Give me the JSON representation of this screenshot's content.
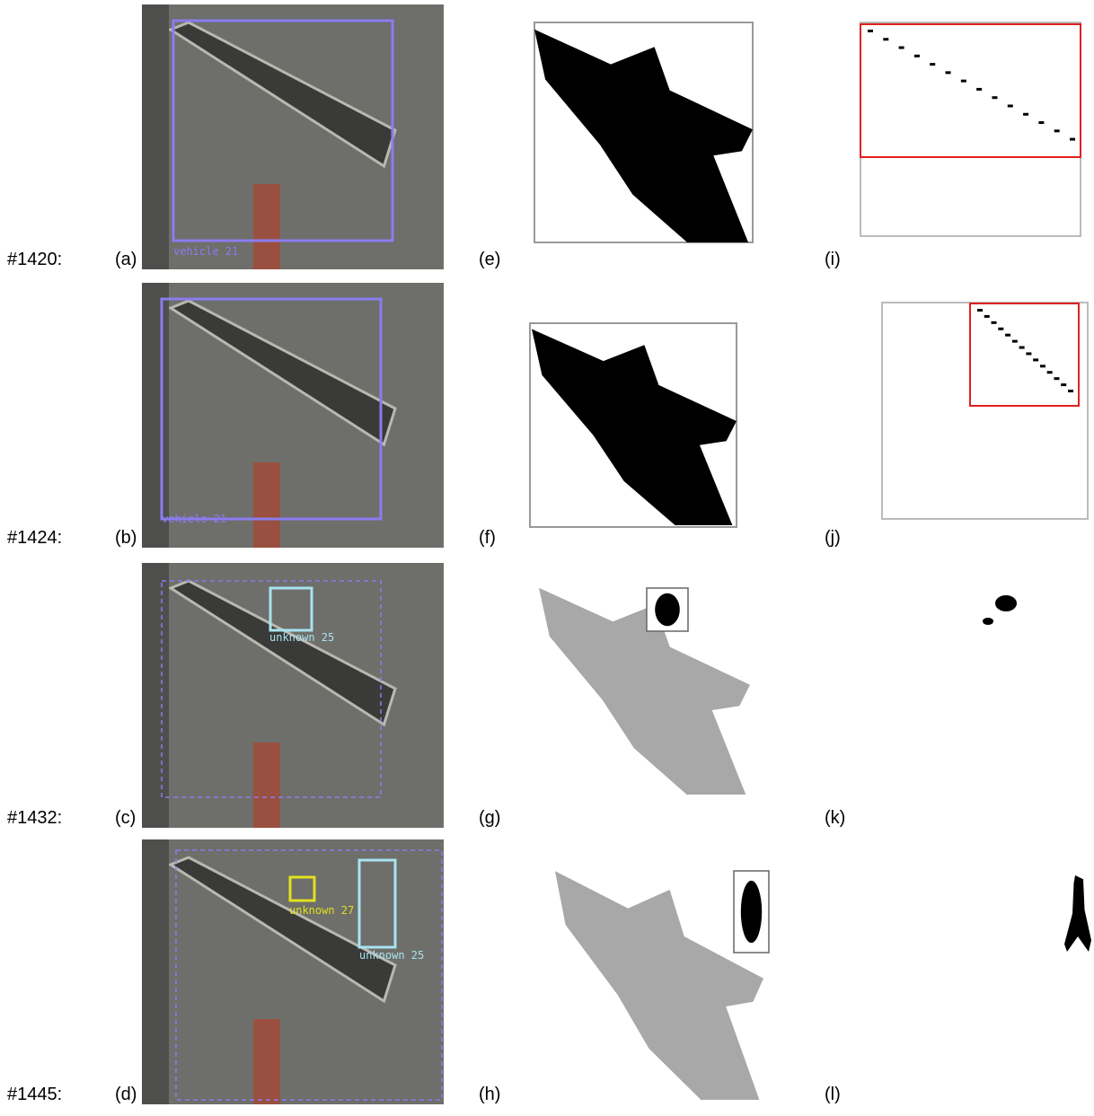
{
  "rows": [
    {
      "frame": "#1420:",
      "labels": [
        "(a)",
        "(e)",
        "(i)"
      ],
      "annotations": [
        "vehicle 21"
      ]
    },
    {
      "frame": "#1424:",
      "labels": [
        "(b)",
        "(f)",
        "(j)"
      ],
      "annotations": [
        "vehicle 21"
      ]
    },
    {
      "frame": "#1432:",
      "labels": [
        "(c)",
        "(g)",
        "(k)"
      ],
      "annotations": [
        "unknown 25"
      ]
    },
    {
      "frame": "#1445:",
      "labels": [
        "(d)",
        "(h)",
        "(l)"
      ],
      "annotations": [
        "unknown 27",
        "unknown 25"
      ]
    }
  ]
}
